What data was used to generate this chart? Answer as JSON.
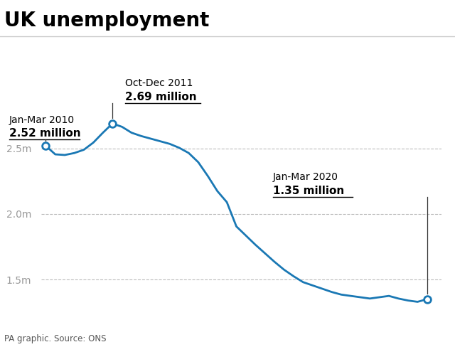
{
  "title": "UK unemployment",
  "source": "PA graphic. Source: ONS",
  "title_fontsize": 20,
  "background_color": "#ffffff",
  "line_color": "#1a78b4",
  "line_width": 2.0,
  "yticks": [
    1.5,
    2.0,
    2.5
  ],
  "ytick_labels": [
    "1.5m",
    "2.0m",
    "2.5m"
  ],
  "ylim": [
    1.25,
    3.05
  ],
  "xlim": [
    -0.5,
    41.5
  ],
  "data_x": [
    0,
    1,
    2,
    3,
    4,
    5,
    6,
    7,
    8,
    9,
    10,
    11,
    12,
    13,
    14,
    15,
    16,
    17,
    18,
    19,
    20,
    21,
    22,
    23,
    24,
    25,
    26,
    27,
    28,
    29,
    30,
    31,
    32,
    33,
    34,
    35,
    36,
    37,
    38,
    39,
    40
  ],
  "data_y": [
    2.52,
    2.455,
    2.45,
    2.465,
    2.49,
    2.545,
    2.62,
    2.69,
    2.665,
    2.62,
    2.595,
    2.575,
    2.555,
    2.535,
    2.505,
    2.465,
    2.395,
    2.29,
    2.175,
    2.09,
    1.905,
    1.835,
    1.765,
    1.7,
    1.635,
    1.575,
    1.525,
    1.48,
    1.455,
    1.43,
    1.405,
    1.385,
    1.375,
    1.365,
    1.355,
    1.365,
    1.375,
    1.355,
    1.34,
    1.33,
    1.35
  ],
  "annotated_points": [
    [
      0,
      2.52
    ],
    [
      7,
      2.69
    ],
    [
      40,
      1.35
    ]
  ],
  "ann1_label1": "Jan-Mar 2010",
  "ann1_label2": "2.52 million",
  "ann2_label1": "Oct-Dec 2011",
  "ann2_label2": "2.69 million",
  "ann3_label1": "Jan-Mar 2020",
  "ann3_label2": "1.35 million",
  "grid_color": "#bbbbbb",
  "grid_linestyle": "--",
  "grid_linewidth": 0.8,
  "tick_label_color": "#999999",
  "tick_fontsize": 10,
  "separator_color": "#cccccc",
  "ann_line_color": "#333333",
  "ann_text_fontsize": 10,
  "ann_bold_fontsize": 11
}
